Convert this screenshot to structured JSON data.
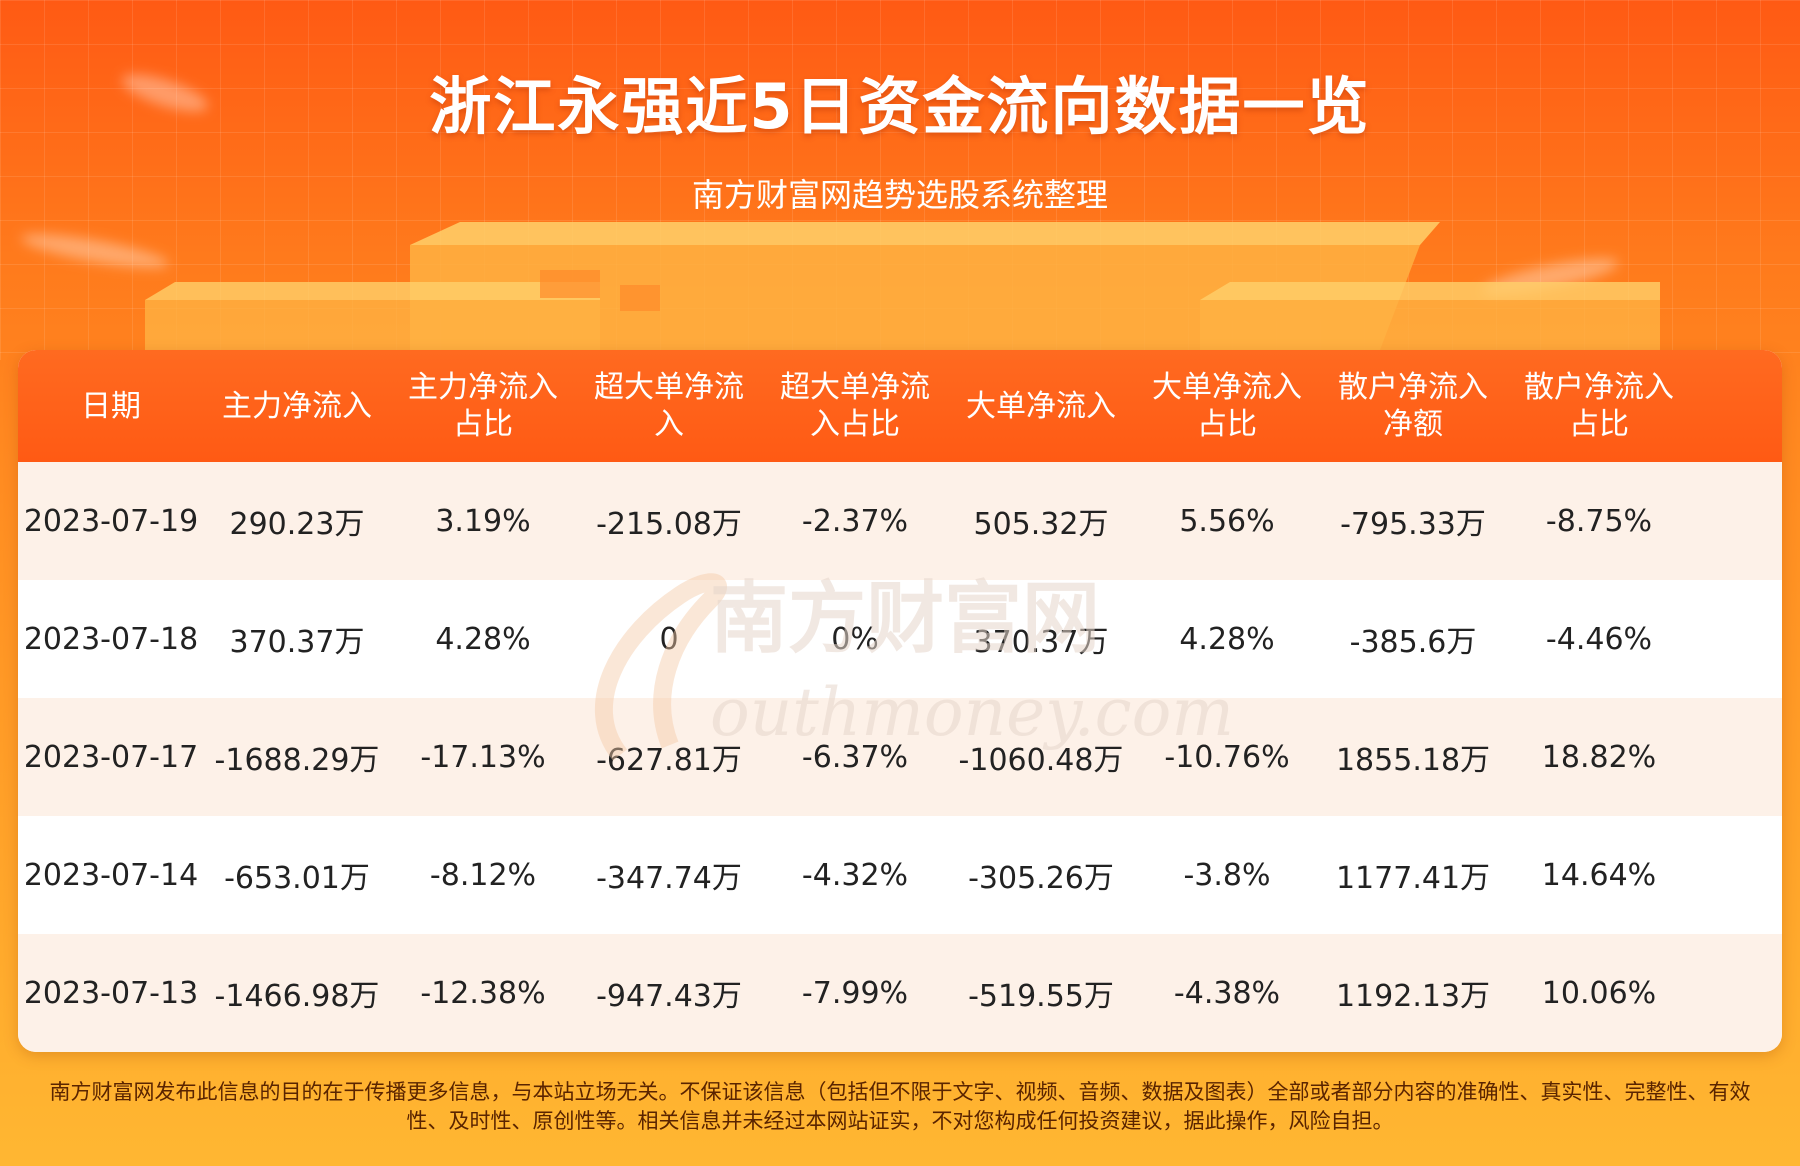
{
  "title": "浙江永强近5日资金流向数据一览",
  "subtitle": "南方财富网趋势选股系统整理",
  "table": {
    "headers": [
      "日期",
      "主力净流入",
      "主力净流入\n占比",
      "超大单净流\n入",
      "超大单净流\n入占比",
      "大单净流入",
      "大单净流入\n占比",
      "散户净流入\n净额",
      "散户净流入\n占比"
    ],
    "rows": [
      [
        "2023-07-19",
        "290.23万",
        "3.19%",
        "-215.08万",
        "-2.37%",
        "505.32万",
        "5.56%",
        "-795.33万",
        "-8.75%"
      ],
      [
        "2023-07-18",
        "370.37万",
        "4.28%",
        "0",
        "0%",
        "370.37万",
        "4.28%",
        "-385.6万",
        "-4.46%"
      ],
      [
        "2023-07-17",
        "-1688.29万",
        "-17.13%",
        "-627.81万",
        "-6.37%",
        "-1060.48万",
        "-10.76%",
        "1855.18万",
        "18.82%"
      ],
      [
        "2023-07-14",
        "-653.01万",
        "-8.12%",
        "-347.74万",
        "-4.32%",
        "-305.26万",
        "-3.8%",
        "1177.41万",
        "14.64%"
      ],
      [
        "2023-07-13",
        "-1466.98万",
        "-12.38%",
        "-947.43万",
        "-7.99%",
        "-519.55万",
        "-4.38%",
        "1192.13万",
        "10.06%"
      ]
    ]
  },
  "watermark": {
    "cn": "南方财富网",
    "en": "outhmoney.com"
  },
  "footer": {
    "line1": "南方财富网发布此信息的目的在于传播更多信息，与本站立场无关。不保证该信息（包括但不限于文字、视频、音频、数据及图表）全部或者部分内容的准确性、真实性、完整性、有效",
    "line2": "性、及时性、原创性等。相关信息并未经过本网站证实，不对您构成任何投资建议，据此操作，风险自担。"
  },
  "colors": {
    "header_bg": "#ff5a14",
    "odd_row": "#fdf1e8",
    "even_row": "#ffffff",
    "text": "#222222"
  }
}
